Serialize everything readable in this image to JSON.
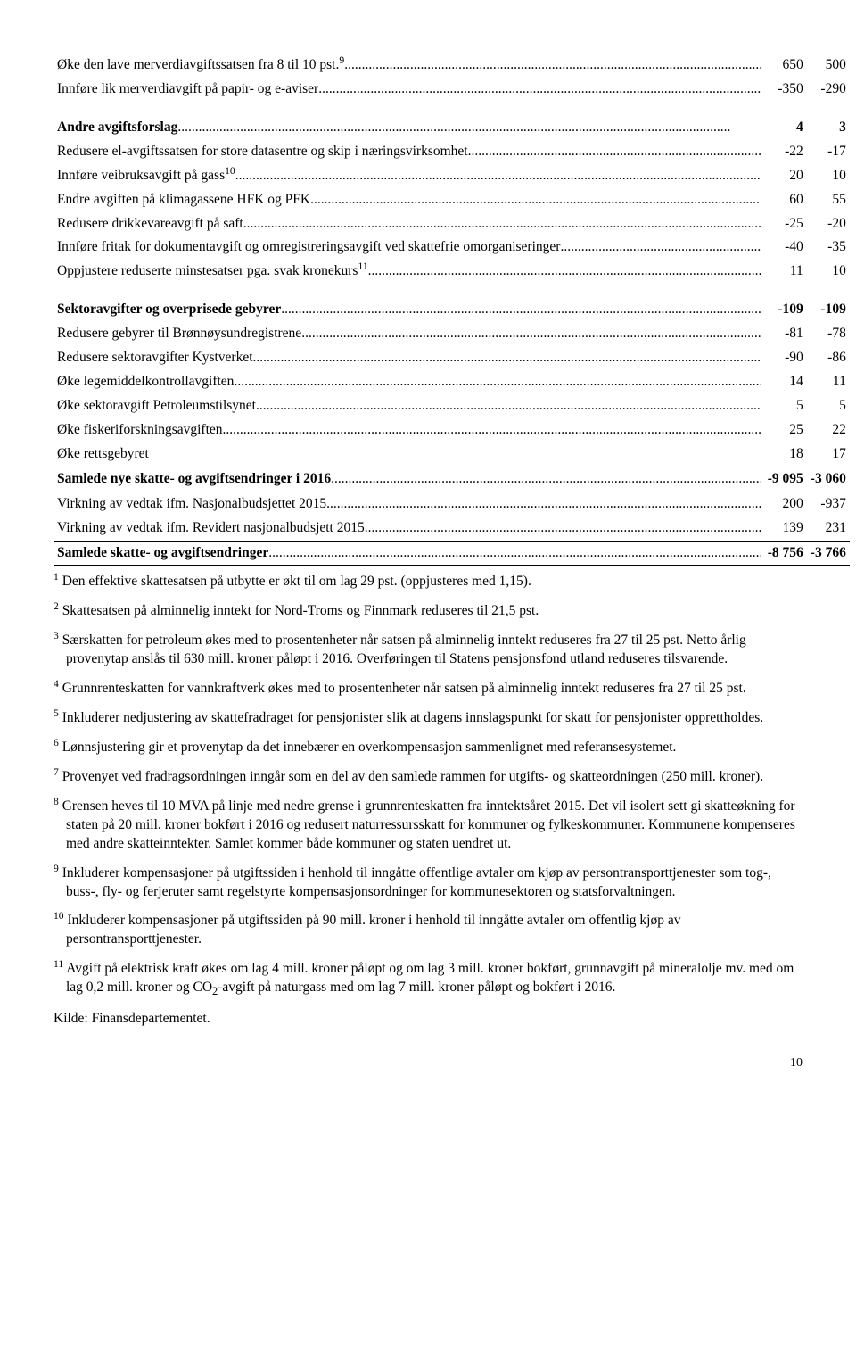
{
  "table": {
    "rows": [
      {
        "desc": "Øke den lave merverdiavgiftssatsen fra 8 til 10 pst.",
        "sup": "9",
        "dots": true,
        "c1": "650",
        "c2": "500",
        "bold": false
      },
      {
        "desc": "Innføre lik merverdiavgift på papir- og e-aviser",
        "dots": true,
        "c1": "-350",
        "c2": "-290",
        "bold": false
      },
      {
        "spacer": true
      },
      {
        "desc": "Andre avgiftsforslag",
        "dots": true,
        "c1": "4",
        "c2": "3",
        "bold": true
      },
      {
        "desc": "Redusere el-avgiftssatsen for store datasentre og skip i næringsvirksomhet",
        "dots": true,
        "c1": "-22",
        "c2": "-17",
        "bold": false
      },
      {
        "desc": "Innføre veibruksavgift på gass",
        "sup": "10",
        "dots": true,
        "c1": "20",
        "c2": "10",
        "bold": false
      },
      {
        "desc": "Endre avgiften på klimagassene HFK og PFK",
        "dots": true,
        "c1": "60",
        "c2": "55",
        "bold": false
      },
      {
        "desc": "Redusere drikkevareavgift på saft",
        "dots": true,
        "c1": "-25",
        "c2": "-20",
        "bold": false
      },
      {
        "desc": "Innføre fritak for dokumentavgift og omregistreringsavgift ved skattefrie omorganiseringer",
        "dots": true,
        "c1": "-40",
        "c2": "-35",
        "bold": false
      },
      {
        "desc": "Oppjustere reduserte minstesatser pga. svak kronekurs",
        "sup": "11",
        "dots": true,
        "c1": "11",
        "c2": "10",
        "bold": false
      },
      {
        "spacer": true
      },
      {
        "desc": "Sektoravgifter og overprisede gebyrer",
        "dots": true,
        "c1": "-109",
        "c2": "-109",
        "bold": true
      },
      {
        "desc": "Redusere gebyrer til Brønnøysundregistrene",
        "dots": true,
        "c1": "-81",
        "c2": "-78",
        "bold": false
      },
      {
        "desc": "Redusere sektoravgifter Kystverket",
        "dots": true,
        "c1": "-90",
        "c2": "-86",
        "bold": false
      },
      {
        "desc": "Øke legemiddelkontrollavgiften",
        "dots": true,
        "c1": "14",
        "c2": "11",
        "bold": false
      },
      {
        "desc": "Øke sektoravgift Petroleumstilsynet",
        "dots": true,
        "c1": "5",
        "c2": "5",
        "bold": false
      },
      {
        "desc": "Øke fiskeriforskningsavgiften",
        "dots": true,
        "c1": "25",
        "c2": "22",
        "bold": false
      },
      {
        "desc": "Øke rettsgebyret",
        "dots": false,
        "c1": "18",
        "c2": "17",
        "bold": false
      },
      {
        "desc": "Samlede nye skatte- og avgiftsendringer i 2016",
        "dots": true,
        "c1": "-9 095",
        "c2": "-3 060",
        "bold": true,
        "border": true
      },
      {
        "desc": "Virkning av vedtak ifm. Nasjonalbudsjettet 2015",
        "dots": true,
        "c1": "200",
        "c2": "-937",
        "bold": false,
        "border": true
      },
      {
        "desc": "Virkning av vedtak ifm. Revidert nasjonalbudsjett 2015",
        "dots": true,
        "c1": "139",
        "c2": "231",
        "bold": false
      },
      {
        "desc": "Samlede skatte- og avgiftsendringer",
        "dots": true,
        "c1": "-8 756",
        "c2": "-3 766",
        "bold": true,
        "border": true,
        "borderBottom": true
      }
    ]
  },
  "footnotes": [
    {
      "num": "1",
      "text": "Den effektive skattesatsen på utbytte er økt til om lag 29 pst. (oppjusteres med 1,15)."
    },
    {
      "num": "2",
      "text": "Skattesatsen på alminnelig inntekt for Nord-Troms og Finnmark reduseres til 21,5 pst."
    },
    {
      "num": "3",
      "text": "Særskatten for petroleum økes med to prosentenheter når satsen på alminnelig inntekt reduseres fra 27 til 25 pst.  Netto årlig provenytap anslås til 630 mill. kroner påløpt i 2016. Overføringen til Statens pensjonsfond utland reduseres tilsvarende."
    },
    {
      "num": "4",
      "text": "Grunnrenteskatten for vannkraftverk økes med to prosentenheter når satsen på alminnelig inntekt reduseres fra 27 til 25 pst."
    },
    {
      "num": "5",
      "text": "Inkluderer nedjustering av skattefradraget for pensjonister slik at dagens innslagspunkt for skatt for pensjonister opprettholdes."
    },
    {
      "num": "6",
      "text": "Lønnsjustering gir et provenytap da det innebærer en overkompensasjon sammenlignet med referansesystemet."
    },
    {
      "num": "7",
      "text": "Provenyet ved fradragsordningen inngår som en del av den samlede rammen for utgifts- og skatteordningen (250 mill. kroner)."
    },
    {
      "num": "8",
      "text": "Grensen heves til 10 MVA på linje med nedre grense i grunnrenteskatten fra inntektsåret 2015. Det vil isolert sett gi skatteøkning for staten på 20 mill. kroner bokført i 2016 og redusert naturressursskatt for kommuner og fylkeskommuner. Kommunene kompenseres med andre skatteinntekter. Samlet kommer både kommuner og staten uendret ut."
    },
    {
      "num": "9",
      "text": "Inkluderer kompensasjoner på utgiftssiden i henhold til inngåtte offentlige avtaler om kjøp av persontransporttjenester som tog-, buss-, fly- og ferjeruter samt regelstyrte kompensasjonsordninger for kommunesektoren og statsforvaltningen."
    },
    {
      "num": "10",
      "text": "Inkluderer kompensasjoner på utgiftssiden på 90 mill. kroner i henhold til inngåtte avtaler om offentlig kjøp av persontransporttjenester."
    },
    {
      "num": "11",
      "text": "Avgift på elektrisk kraft økes om lag 4 mill. kroner påløpt og om lag 3 mill. kroner bokført, grunnavgift på mineralolje mv. med om lag 0,2 mill. kroner og CO2-avgift på naturgass med om lag 7 mill. kroner påløpt og bokført i 2016.",
      "co2": true
    }
  ],
  "source": "Kilde: Finansdepartementet.",
  "pagenum": "10"
}
